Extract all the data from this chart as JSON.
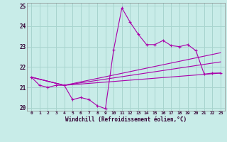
{
  "xlabel": "Windchill (Refroidissement éolien,°C)",
  "background_color": "#c8ece8",
  "grid_color": "#a8d4ce",
  "line_color": "#aa00aa",
  "xlim_min": -0.5,
  "xlim_max": 23.5,
  "ylim_min": 19.85,
  "ylim_max": 25.15,
  "yticks": [
    20,
    21,
    22,
    23,
    24,
    25
  ],
  "xticks": [
    0,
    1,
    2,
    3,
    4,
    5,
    6,
    7,
    8,
    9,
    10,
    11,
    12,
    13,
    14,
    15,
    16,
    17,
    18,
    19,
    20,
    21,
    22,
    23
  ],
  "line1_x": [
    0,
    1,
    2,
    3,
    4,
    5,
    6,
    7,
    8,
    9,
    10,
    11,
    12,
    13,
    14,
    15,
    16,
    17,
    18,
    19,
    20,
    21,
    22,
    23
  ],
  "line1_y": [
    21.5,
    21.1,
    21.0,
    21.1,
    21.1,
    20.4,
    20.5,
    20.4,
    20.1,
    19.95,
    22.85,
    24.9,
    24.2,
    23.6,
    23.1,
    23.1,
    23.3,
    23.05,
    23.0,
    23.1,
    22.8,
    21.65,
    21.7,
    21.7
  ],
  "line2_x": [
    0,
    4,
    23
  ],
  "line2_y": [
    21.5,
    21.1,
    21.7
  ],
  "line3_x": [
    0,
    4,
    23
  ],
  "line3_y": [
    21.5,
    21.1,
    22.7
  ],
  "line4_x": [
    0,
    4,
    23
  ],
  "line4_y": [
    21.5,
    21.1,
    22.25
  ]
}
